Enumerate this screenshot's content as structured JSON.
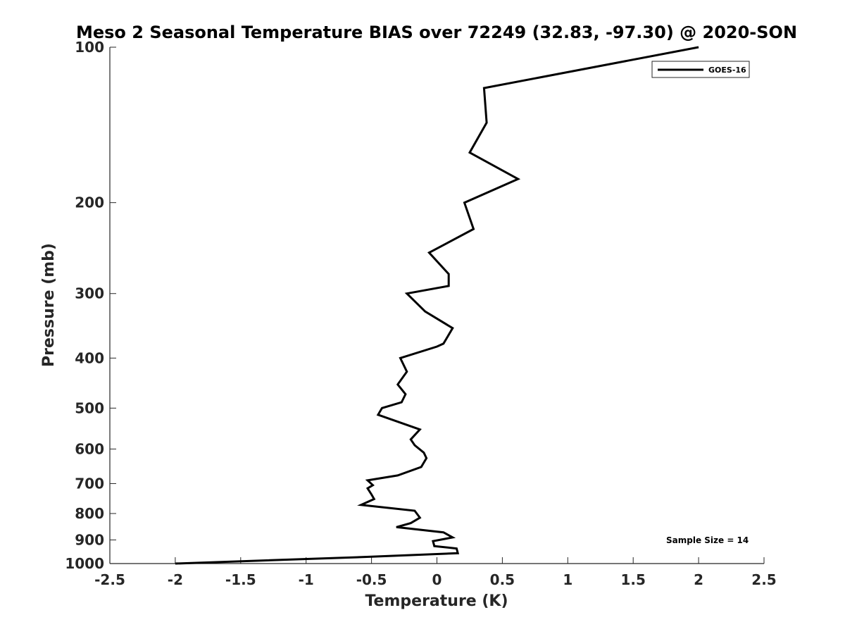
{
  "chart_data": {
    "type": "line",
    "title": "Meso 2 Seasonal Temperature BIAS over 72249 (32.83, -97.30) @ 2020-SON",
    "xlabel": "Temperature (K)",
    "ylabel": "Pressure (mb)",
    "xlim": [
      -2.5,
      2.5
    ],
    "ylim": [
      100,
      1000
    ],
    "yscale": "log",
    "y_reversed": true,
    "grid": false,
    "legend_position": "top-right",
    "x_ticks": [
      -2.5,
      -2,
      -1.5,
      -1,
      -0.5,
      0,
      0.5,
      1,
      1.5,
      2,
      2.5
    ],
    "x_tick_labels": [
      "-2.5",
      "-2",
      "-1.5",
      "-1",
      "-0.5",
      "0",
      "0.5",
      "1",
      "1.5",
      "2",
      "2.5"
    ],
    "y_ticks": [
      100,
      200,
      300,
      400,
      500,
      600,
      700,
      800,
      900,
      1000
    ],
    "y_tick_labels": [
      "100",
      "200",
      "300",
      "400",
      "500",
      "600",
      "700",
      "800",
      "900",
      "1000"
    ],
    "annotation": "Sample Size = 14",
    "series": [
      {
        "name": "GOES-16",
        "color": "#000000",
        "points": [
          [
            2.0,
            100
          ],
          [
            0.36,
            120
          ],
          [
            0.38,
            140
          ],
          [
            0.25,
            160
          ],
          [
            0.62,
            180
          ],
          [
            0.21,
            200
          ],
          [
            0.28,
            225
          ],
          [
            -0.06,
            250
          ],
          [
            0.09,
            275
          ],
          [
            0.09,
            290
          ],
          [
            -0.23,
            300
          ],
          [
            -0.09,
            325
          ],
          [
            0.12,
            350
          ],
          [
            0.05,
            375
          ],
          [
            0.0,
            380
          ],
          [
            -0.28,
            400
          ],
          [
            -0.23,
            425
          ],
          [
            -0.3,
            450
          ],
          [
            -0.24,
            470
          ],
          [
            -0.27,
            487
          ],
          [
            -0.42,
            500
          ],
          [
            -0.45,
            515
          ],
          [
            -0.13,
            550
          ],
          [
            -0.2,
            575
          ],
          [
            -0.17,
            590
          ],
          [
            -0.1,
            610
          ],
          [
            -0.08,
            625
          ],
          [
            -0.12,
            650
          ],
          [
            -0.3,
            675
          ],
          [
            -0.53,
            690
          ],
          [
            -0.49,
            705
          ],
          [
            -0.53,
            715
          ],
          [
            -0.5,
            735
          ],
          [
            -0.48,
            750
          ],
          [
            -0.58,
            770
          ],
          [
            -0.17,
            790
          ],
          [
            -0.13,
            815
          ],
          [
            -0.2,
            835
          ],
          [
            -0.31,
            850
          ],
          [
            0.05,
            870
          ],
          [
            0.12,
            890
          ],
          [
            -0.03,
            905
          ],
          [
            -0.02,
            925
          ],
          [
            0.15,
            935
          ],
          [
            0.16,
            955
          ],
          [
            -0.5,
            970
          ],
          [
            -2.0,
            1000
          ]
        ]
      }
    ]
  }
}
